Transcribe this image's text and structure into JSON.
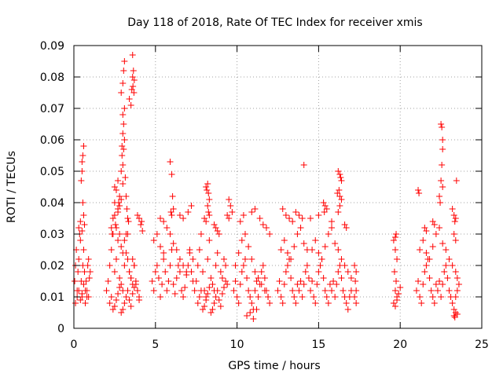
{
  "chart_data": {
    "type": "scatter",
    "title": "Day 118 of 2018, Rate Of TEC Index for receiver xmis",
    "xlabel": "GPS time / hours",
    "ylabel": "ROTI / TECUs",
    "xlim": [
      0,
      25
    ],
    "ylim": [
      0,
      0.09
    ],
    "x_ticks": [
      0,
      5,
      10,
      15,
      20,
      25
    ],
    "x_tick_labels": [
      "0",
      "5",
      "10",
      "15",
      "20",
      "25"
    ],
    "y_ticks": [
      0,
      0.01,
      0.02,
      0.03,
      0.04,
      0.05,
      0.06,
      0.07,
      0.08,
      0.09
    ],
    "y_tick_labels": [
      "0",
      "0.01",
      "0.02",
      "0.03",
      "0.04",
      "0.05",
      "0.06",
      "0.07",
      "0.08",
      "0.09"
    ],
    "grid": true,
    "legend": "none",
    "marker": "+",
    "marker_color": "#ff0000",
    "series": [
      {
        "x": [
          0.05,
          0.1,
          0.15,
          0.2,
          0.25,
          0.3,
          0.35,
          0.4,
          0.45,
          0.5,
          0.55,
          0.6,
          0.65,
          0.7,
          0.75,
          0.8,
          0.85,
          0.9,
          0.95,
          1.0,
          0.1,
          0.2,
          0.3,
          0.4,
          0.5,
          0.6,
          0.7,
          0.8,
          0.9,
          0.5,
          0.55,
          0.6,
          0.45,
          0.5,
          0.55,
          0.6,
          0.65,
          0.3,
          0.4,
          0.5,
          2.0,
          2.1,
          2.2,
          2.3,
          2.4,
          2.5,
          2.6,
          2.7,
          2.8,
          2.9,
          3.0,
          3.1,
          3.2,
          3.3,
          3.4,
          3.5,
          3.6,
          3.7,
          3.8,
          3.9,
          4.0,
          2.2,
          2.3,
          2.4,
          2.5,
          2.6,
          2.7,
          2.8,
          2.9,
          3.0,
          3.1,
          3.2,
          3.3,
          3.4,
          3.5,
          3.6,
          3.7,
          3.8,
          3.9,
          4.0,
          2.4,
          2.5,
          2.6,
          2.7,
          2.8,
          2.9,
          3.0,
          3.1,
          3.2,
          3.3,
          3.4,
          3.5,
          3.6,
          3.7,
          2.5,
          2.6,
          2.7,
          2.8,
          2.9,
          3.0,
          2.95,
          3.0,
          3.05,
          3.1,
          2.9,
          3.0,
          3.05,
          3.1,
          3.0,
          3.1,
          3.05,
          3.6,
          3.65,
          3.7,
          3.62,
          3.68,
          3.4,
          3.5,
          3.55,
          3.6,
          2.5,
          2.55,
          2.3,
          2.35,
          2.9,
          2.95,
          3.0,
          3.15,
          3.2,
          3.25,
          3.3,
          3.35,
          2.7,
          2.75,
          2.8,
          3.9,
          4.0,
          4.1,
          4.15,
          4.2,
          4.8,
          4.9,
          5.0,
          5.1,
          5.2,
          5.3,
          5.4,
          5.5,
          5.6,
          5.7,
          5.8,
          5.9,
          6.0,
          6.1,
          6.2,
          6.3,
          6.4,
          6.5,
          6.6,
          6.7,
          6.8,
          6.9,
          7.0,
          7.1,
          7.2,
          7.3,
          7.4,
          4.9,
          5.1,
          5.3,
          5.5,
          5.7,
          5.9,
          6.1,
          6.3,
          6.5,
          6.7,
          6.9,
          7.1,
          7.3,
          5.9,
          6.0,
          6.05,
          6.1,
          5.95,
          6.0,
          5.3,
          5.5,
          6.5,
          6.7,
          7.0,
          7.2,
          7.5,
          7.6,
          7.7,
          7.8,
          7.9,
          8.0,
          8.1,
          8.2,
          8.3,
          8.4,
          8.5,
          8.6,
          8.7,
          8.8,
          8.9,
          9.0,
          9.1,
          9.2,
          9.3,
          9.4,
          7.6,
          7.7,
          7.8,
          7.9,
          8.0,
          8.1,
          8.2,
          8.3,
          8.4,
          8.5,
          8.6,
          8.7,
          8.8,
          8.9,
          9.0,
          9.1,
          9.2,
          9.3,
          8.1,
          8.15,
          8.2,
          8.25,
          8.3,
          8.2,
          8.25,
          8.3,
          8.0,
          8.1,
          8.6,
          8.7,
          8.8,
          9.5,
          9.6,
          9.7,
          9.4,
          9.5,
          9.8,
          9.9,
          10.0,
          10.1,
          10.2,
          10.3,
          10.4,
          10.5,
          10.6,
          10.7,
          10.8,
          10.9,
          11.0,
          11.1,
          11.2,
          11.3,
          11.4,
          11.5,
          11.6,
          11.7,
          11.8,
          11.9,
          12.0,
          9.9,
          10.1,
          10.3,
          10.5,
          10.7,
          10.9,
          11.1,
          11.3,
          11.5,
          11.7,
          11.9,
          10.6,
          10.8,
          11.0,
          11.2,
          10.9,
          11.1,
          11.4,
          11.6,
          11.8,
          12.0,
          10.2,
          10.4,
          12.5,
          12.6,
          12.7,
          12.8,
          12.9,
          13.0,
          13.1,
          13.2,
          13.3,
          13.4,
          13.5,
          13.6,
          13.7,
          13.8,
          13.9,
          14.0,
          14.1,
          14.2,
          14.3,
          14.4,
          12.7,
          12.9,
          13.1,
          13.3,
          13.5,
          13.7,
          13.9,
          14.1,
          14.3,
          12.8,
          13.0,
          13.2,
          13.4,
          13.6,
          13.8,
          14.0,
          14.5,
          14.6,
          14.7,
          14.8,
          14.9,
          15.0,
          15.1,
          15.2,
          15.3,
          15.4,
          15.5,
          15.6,
          15.7,
          15.8,
          15.9,
          16.0,
          16.1,
          16.2,
          16.3,
          16.4,
          16.5,
          16.6,
          16.7,
          16.8,
          16.9,
          17.0,
          14.6,
          14.8,
          15.0,
          15.2,
          15.4,
          15.6,
          15.8,
          16.0,
          16.2,
          16.4,
          16.6,
          16.8,
          17.0,
          15.3,
          15.4,
          15.5,
          15.35,
          16.2,
          16.3,
          16.35,
          16.4,
          16.15,
          16.25,
          16.3,
          16.4,
          16.3,
          16.2,
          14.1,
          14.5,
          15.0,
          15.8,
          16.6,
          16.7,
          17.2,
          17.3,
          17.25,
          17.3,
          17.2,
          17.3,
          19.6,
          19.7,
          19.8,
          19.65,
          19.75,
          19.7,
          19.8,
          19.6,
          19.7,
          19.8,
          19.9,
          20.0,
          19.7,
          19.75,
          21.0,
          21.1,
          21.2,
          21.3,
          21.4,
          21.5,
          21.6,
          21.7,
          21.8,
          21.9,
          22.0,
          22.1,
          22.2,
          22.3,
          22.4,
          22.5,
          22.6,
          22.7,
          22.8,
          22.9,
          23.0,
          23.1,
          23.2,
          23.3,
          23.4,
          23.5,
          23.6,
          21.2,
          21.4,
          21.6,
          21.8,
          22.0,
          22.2,
          22.4,
          22.6,
          22.8,
          23.0,
          23.2,
          23.4,
          23.5,
          22.5,
          22.55,
          22.6,
          22.6,
          22.55,
          22.5,
          22.6,
          22.4,
          22.45,
          23.2,
          23.3,
          23.35,
          23.4,
          23.45,
          21.1,
          21.15,
          21.5,
          21.6,
          22.0,
          22.1,
          23.3,
          23.35,
          23.4,
          23.5,
          23.3,
          23.4
        ],
        "y": [
          0.015,
          0.02,
          0.025,
          0.012,
          0.018,
          0.022,
          0.03,
          0.028,
          0.015,
          0.01,
          0.02,
          0.025,
          0.018,
          0.012,
          0.015,
          0.01,
          0.02,
          0.022,
          0.016,
          0.018,
          0.008,
          0.01,
          0.012,
          0.009,
          0.011,
          0.014,
          0.008,
          0.012,
          0.01,
          0.053,
          0.055,
          0.058,
          0.047,
          0.05,
          0.04,
          0.036,
          0.033,
          0.032,
          0.034,
          0.031,
          0.012,
          0.015,
          0.02,
          0.025,
          0.03,
          0.018,
          0.022,
          0.028,
          0.016,
          0.014,
          0.012,
          0.02,
          0.024,
          0.03,
          0.018,
          0.016,
          0.022,
          0.02,
          0.014,
          0.012,
          0.01,
          0.008,
          0.01,
          0.006,
          0.007,
          0.009,
          0.011,
          0.013,
          0.005,
          0.006,
          0.008,
          0.01,
          0.012,
          0.009,
          0.007,
          0.011,
          0.013,
          0.015,
          0.012,
          0.009,
          0.035,
          0.04,
          0.032,
          0.038,
          0.03,
          0.026,
          0.024,
          0.028,
          0.03,
          0.022,
          0.018,
          0.016,
          0.014,
          0.02,
          0.045,
          0.044,
          0.047,
          0.042,
          0.041,
          0.046,
          0.058,
          0.062,
          0.065,
          0.07,
          0.075,
          0.078,
          0.082,
          0.085,
          0.068,
          0.06,
          0.057,
          0.087,
          0.082,
          0.079,
          0.077,
          0.075,
          0.073,
          0.071,
          0.076,
          0.08,
          0.036,
          0.033,
          0.032,
          0.03,
          0.05,
          0.055,
          0.052,
          0.048,
          0.042,
          0.038,
          0.035,
          0.034,
          0.037,
          0.04,
          0.039,
          0.036,
          0.035,
          0.033,
          0.034,
          0.031,
          0.015,
          0.012,
          0.018,
          0.02,
          0.016,
          0.01,
          0.014,
          0.022,
          0.018,
          0.012,
          0.015,
          0.02,
          0.025,
          0.014,
          0.011,
          0.016,
          0.02,
          0.018,
          0.012,
          0.01,
          0.013,
          0.017,
          0.02,
          0.025,
          0.018,
          0.015,
          0.012,
          0.028,
          0.03,
          0.026,
          0.024,
          0.032,
          0.03,
          0.027,
          0.025,
          0.022,
          0.02,
          0.018,
          0.024,
          0.022,
          0.053,
          0.049,
          0.042,
          0.038,
          0.037,
          0.036,
          0.035,
          0.034,
          0.036,
          0.035,
          0.037,
          0.039,
          0.015,
          0.02,
          0.025,
          0.03,
          0.018,
          0.012,
          0.01,
          0.022,
          0.028,
          0.016,
          0.014,
          0.012,
          0.02,
          0.024,
          0.03,
          0.018,
          0.016,
          0.022,
          0.02,
          0.014,
          0.008,
          0.01,
          0.012,
          0.006,
          0.007,
          0.009,
          0.011,
          0.013,
          0.005,
          0.006,
          0.008,
          0.01,
          0.012,
          0.009,
          0.007,
          0.011,
          0.013,
          0.015,
          0.045,
          0.044,
          0.046,
          0.043,
          0.041,
          0.039,
          0.037,
          0.036,
          0.035,
          0.034,
          0.033,
          0.032,
          0.031,
          0.041,
          0.039,
          0.037,
          0.036,
          0.035,
          0.012,
          0.015,
          0.01,
          0.008,
          0.014,
          0.018,
          0.02,
          0.022,
          0.016,
          0.012,
          0.01,
          0.008,
          0.006,
          0.012,
          0.015,
          0.01,
          0.014,
          0.018,
          0.02,
          0.016,
          0.012,
          0.01,
          0.008,
          0.02,
          0.024,
          0.028,
          0.03,
          0.026,
          0.022,
          0.018,
          0.016,
          0.014,
          0.012,
          0.01,
          0.004,
          0.005,
          0.003,
          0.006,
          0.037,
          0.038,
          0.035,
          0.033,
          0.032,
          0.03,
          0.034,
          0.036,
          0.012,
          0.015,
          0.01,
          0.008,
          0.014,
          0.018,
          0.02,
          0.022,
          0.016,
          0.012,
          0.01,
          0.008,
          0.014,
          0.012,
          0.015,
          0.01,
          0.014,
          0.018,
          0.02,
          0.016,
          0.025,
          0.028,
          0.024,
          0.022,
          0.026,
          0.03,
          0.032,
          0.027,
          0.025,
          0.038,
          0.036,
          0.035,
          0.034,
          0.037,
          0.036,
          0.035,
          0.012,
          0.015,
          0.01,
          0.008,
          0.014,
          0.018,
          0.02,
          0.022,
          0.016,
          0.012,
          0.01,
          0.008,
          0.014,
          0.012,
          0.015,
          0.01,
          0.014,
          0.018,
          0.02,
          0.016,
          0.012,
          0.01,
          0.008,
          0.006,
          0.01,
          0.012,
          0.025,
          0.028,
          0.024,
          0.022,
          0.026,
          0.03,
          0.032,
          0.027,
          0.025,
          0.022,
          0.02,
          0.018,
          0.016,
          0.04,
          0.039,
          0.038,
          0.037,
          0.05,
          0.049,
          0.048,
          0.047,
          0.043,
          0.044,
          0.042,
          0.041,
          0.039,
          0.037,
          0.052,
          0.035,
          0.036,
          0.034,
          0.033,
          0.032,
          0.02,
          0.018,
          0.015,
          0.012,
          0.01,
          0.008,
          0.028,
          0.025,
          0.022,
          0.018,
          0.015,
          0.012,
          0.01,
          0.008,
          0.007,
          0.009,
          0.011,
          0.013,
          0.029,
          0.03,
          0.012,
          0.015,
          0.01,
          0.008,
          0.014,
          0.018,
          0.02,
          0.022,
          0.016,
          0.012,
          0.01,
          0.008,
          0.014,
          0.012,
          0.015,
          0.01,
          0.014,
          0.018,
          0.02,
          0.016,
          0.012,
          0.01,
          0.008,
          0.006,
          0.01,
          0.012,
          0.014,
          0.025,
          0.028,
          0.024,
          0.022,
          0.026,
          0.03,
          0.032,
          0.027,
          0.025,
          0.022,
          0.02,
          0.018,
          0.016,
          0.065,
          0.064,
          0.06,
          0.057,
          0.052,
          0.047,
          0.045,
          0.042,
          0.04,
          0.038,
          0.036,
          0.034,
          0.035,
          0.047,
          0.044,
          0.043,
          0.032,
          0.031,
          0.034,
          0.033,
          0.004,
          0.0035,
          0.005,
          0.0045,
          0.03,
          0.028
        ]
      }
    ]
  }
}
